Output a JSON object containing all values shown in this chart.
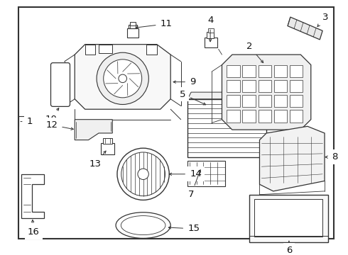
{
  "bg_color": "#ffffff",
  "border_color": "#000000",
  "line_color": "#333333",
  "label_color": "#111111",
  "figsize": [
    4.9,
    3.6
  ],
  "dpi": 100
}
